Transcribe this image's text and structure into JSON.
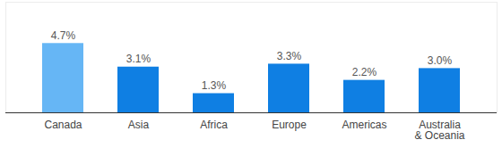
{
  "chart_data": {
    "type": "bar",
    "categories": [
      "Canada",
      "Asia",
      "Africa",
      "Europe",
      "Americas",
      "Australia & Oceania"
    ],
    "values": [
      4.7,
      3.1,
      1.3,
      3.3,
      2.2,
      3.0
    ],
    "value_labels": [
      "4.7%",
      "3.1%",
      "1.3%",
      "3.3%",
      "2.2%",
      "3.0%"
    ],
    "colors": [
      "#66b6f5",
      "#0f7fe3",
      "#0f7fe3",
      "#0f7fe3",
      "#0f7fe3",
      "#0f7fe3"
    ],
    "ylim": [
      0,
      7.5
    ],
    "data_labels": true,
    "tick_labels": "x",
    "grid": false
  }
}
